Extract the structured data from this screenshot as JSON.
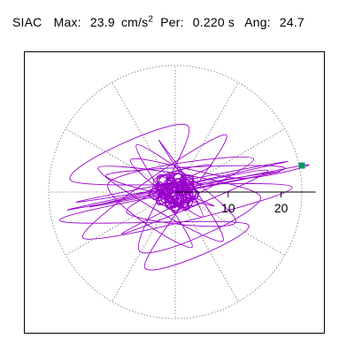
{
  "header": {
    "station": "SIAC",
    "max_label": "Max:",
    "max_value": "23.9",
    "max_unit_base": "cm/s",
    "max_unit_exp": "2",
    "per_label": "Per:",
    "per_value": "0.220 s",
    "ang_label": "Ang:",
    "ang_value": "24.7"
  },
  "chart_data": {
    "type": "scatter",
    "subtype": "polar-particle-motion-orbit",
    "title": "SIAC  Max: 23.9 cm/s2  Per: 0.220 s  Ang: 24.7",
    "max_amplitude": 23.9,
    "period_s": 0.22,
    "angle_deg": 24.7,
    "radial_axis": {
      "tick_labels": [
        "10",
        "20"
      ],
      "ticks": [
        10,
        20
      ],
      "range": [
        0,
        26.5
      ]
    },
    "polar_grid": {
      "circle_radius": 23.9,
      "spoke_step_deg": 30,
      "style": "dotted"
    },
    "series": [
      {
        "color": "#9900cc",
        "description_points": "approximate orbit samples (x,y) in cm/s2",
        "points": [
          [
            0,
            0
          ],
          [
            1.8,
            -0.6
          ],
          [
            -0.9,
            1.4
          ],
          [
            0.6,
            -1.5
          ],
          [
            -1.6,
            -0.4
          ],
          [
            1.2,
            1.3
          ],
          [
            -0.2,
            -1.9
          ],
          [
            -1.4,
            0.9
          ],
          [
            1.9,
            0.3
          ],
          [
            -0.5,
            1.7
          ],
          [
            2.6,
            -3.2
          ],
          [
            -4.1,
            2.2
          ],
          [
            6.8,
            4.9
          ],
          [
            -9.2,
            -3.8
          ],
          [
            11.5,
            -5.6
          ],
          [
            -7.3,
            8.9
          ],
          [
            3.2,
            -10.4
          ],
          [
            -12.6,
            1.7
          ],
          [
            14.8,
            6.2
          ],
          [
            -10.1,
            -7.9
          ],
          [
            17.5,
            4.1
          ],
          [
            -16.2,
            -2.8
          ],
          [
            19.8,
            3.9
          ],
          [
            -18.7,
            -1.9
          ],
          [
            21.3,
            5.8
          ],
          [
            -20.4,
            -3.4
          ],
          [
            23.9,
            5.0
          ],
          [
            12.0,
            2.6
          ],
          [
            -8.4,
            6.1
          ],
          [
            5.2,
            -4.7
          ],
          [
            -3.1,
            9.8
          ],
          [
            8.9,
            -9.3
          ],
          [
            -14.5,
            4.6
          ],
          [
            16.1,
            -0.8
          ],
          [
            -6.7,
            -11.2
          ],
          [
            2.4,
            12.5
          ],
          [
            -19.6,
            2.1
          ],
          [
            22.1,
            0.9
          ],
          [
            -17.4,
            -8.7
          ],
          [
            9.6,
            10.8
          ],
          [
            -5.8,
            -14.2
          ],
          [
            13.7,
            -6.1
          ],
          [
            -21.8,
            -5.2
          ],
          [
            20.7,
            4.4
          ],
          [
            -12.9,
            3.3
          ],
          [
            7.1,
            -2.6
          ],
          [
            -2.3,
            1.1
          ],
          [
            0.8,
            -0.4
          ]
        ]
      }
    ],
    "end_marker": {
      "x": 23.9,
      "y": 5.0,
      "color": "#009966"
    }
  }
}
